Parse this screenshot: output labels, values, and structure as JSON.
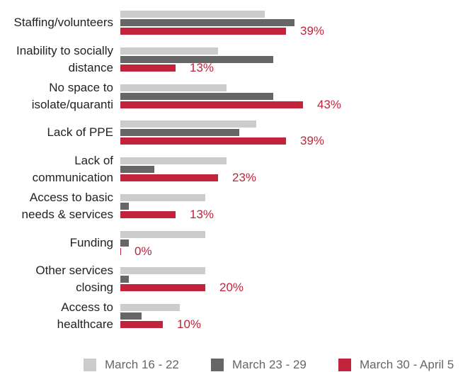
{
  "chart_data": {
    "type": "bar",
    "orientation": "horizontal",
    "categories": [
      "Staffing/volunteers",
      "Inability to socially distance",
      "No space to isolate/quaranti",
      "Lack of PPE",
      "Lack of communication",
      "Access to basic needs & services",
      "Funding",
      "Other services closing",
      "Access to healthcare"
    ],
    "series": [
      {
        "name": "March 16 - 22",
        "color": "#cccccc",
        "values": [
          34,
          23,
          25,
          32,
          25,
          20,
          20,
          20,
          14
        ]
      },
      {
        "name": "March 23 - 29",
        "color": "#666666",
        "values": [
          41,
          36,
          36,
          28,
          8,
          2,
          2,
          2,
          5
        ]
      },
      {
        "name": "March 30 - April 5",
        "color": "#c0233a",
        "values": [
          39,
          13,
          43,
          39,
          23,
          13,
          0,
          20,
          10
        ],
        "value_labels": [
          "39%",
          "13%",
          "43%",
          "39%",
          "23%",
          "13%",
          "0%",
          "20%",
          "10%"
        ]
      }
    ],
    "legend": "bottom"
  }
}
